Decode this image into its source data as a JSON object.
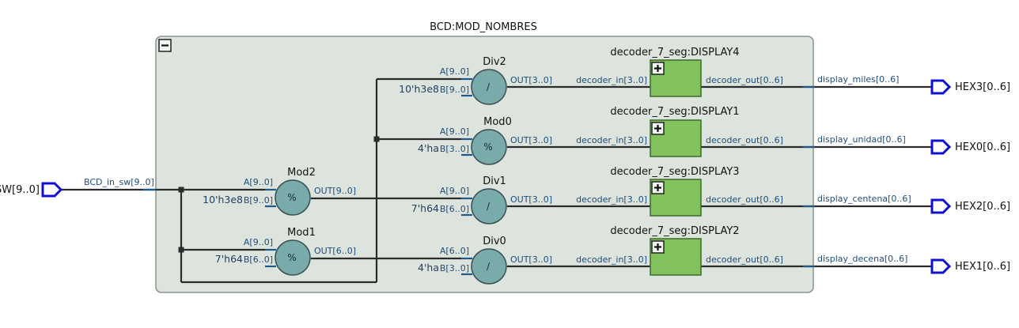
{
  "colors": {
    "module_fill": "#dde4de",
    "module_stroke": "#8a938c",
    "op_fill": "#79abab",
    "op_stroke": "#3a4f52",
    "decoder_fill": "#82c25c",
    "decoder_stroke": "#3d6b2c",
    "pin_stroke": "#1010d0",
    "wire": "#2b2b2b",
    "label_blue": "#1f4d7a"
  },
  "module": {
    "title": "BCD:MOD_NOMBRES",
    "collapse_icon": "minus-box-icon"
  },
  "input_pin": {
    "name": "SW[9..0]",
    "net": "BCD_in_sw[9..0]"
  },
  "mod2": {
    "name": "Mod2",
    "symbol": "%",
    "port_a": "A[9..0]",
    "port_b": "B[9..0]",
    "const": "10'h3e8",
    "port_out": "OUT[9..0]"
  },
  "mod1": {
    "name": "Mod1",
    "symbol": "%",
    "port_a": "A[9..0]",
    "port_b": "B[6..0]",
    "const": "7'h64",
    "port_out": "OUT[6..0]"
  },
  "div2": {
    "name": "Div2",
    "symbol": "/",
    "port_a": "A[9..0]",
    "port_b": "B[9..0]",
    "const": "10'h3e8",
    "port_out": "OUT[3..0]"
  },
  "mod0": {
    "name": "Mod0",
    "symbol": "%",
    "port_a": "A[9..0]",
    "port_b": "B[3..0]",
    "const": "4'ha",
    "port_out": "OUT[3..0]"
  },
  "div1": {
    "name": "Div1",
    "symbol": "/",
    "port_a": "A[9..0]",
    "port_b": "B[6..0]",
    "const": "7'h64",
    "port_out": "OUT[3..0]"
  },
  "div0": {
    "name": "Div0",
    "symbol": "/",
    "port_a": "A[6..0]",
    "port_b": "B[3..0]",
    "const": "4'ha",
    "port_out": "OUT[3..0]"
  },
  "display4": {
    "name": "decoder_7_seg:DISPLAY4",
    "port_in": "decoder_in[3..0]",
    "port_out": "decoder_out[0..6]",
    "icon": "plus-box-icon"
  },
  "display1": {
    "name": "decoder_7_seg:DISPLAY1",
    "port_in": "decoder_in[3..0]",
    "port_out": "decoder_out[0..6]",
    "icon": "plus-box-icon"
  },
  "display3": {
    "name": "decoder_7_seg:DISPLAY3",
    "port_in": "decoder_in[3..0]",
    "port_out": "decoder_out[0..6]",
    "icon": "plus-box-icon"
  },
  "display2": {
    "name": "decoder_7_seg:DISPLAY2",
    "port_in": "decoder_in[3..0]",
    "port_out": "decoder_out[0..6]",
    "icon": "plus-box-icon"
  },
  "outputs": [
    {
      "net": "display_miles[0..6]",
      "pin": "HEX3[0..6]"
    },
    {
      "net": "display_unidad[0..6]",
      "pin": "HEX0[0..6]"
    },
    {
      "net": "display_centena[0..6]",
      "pin": "HEX2[0..6]"
    },
    {
      "net": "display_decena[0..6]",
      "pin": "HEX1[0..6]"
    }
  ]
}
